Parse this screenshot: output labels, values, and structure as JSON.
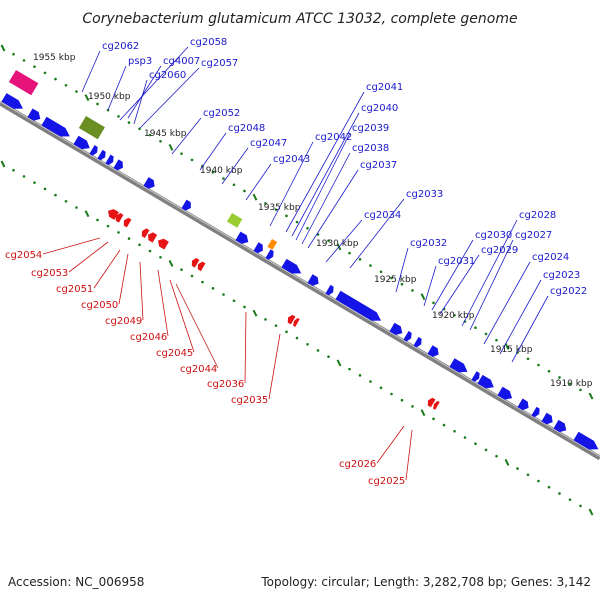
{
  "title": "Corynebacterium glutamicum ATCC 13032, complete genome",
  "footer": {
    "accession": "Accession: NC_006958",
    "summary": "Topology: circular; Length: 3,282,708 bp; Genes: 3,142"
  },
  "colors": {
    "forward_gene": "#1414e6",
    "reverse_gene": "#e61414",
    "backbone": "#808080",
    "ticks": "#1a7a1a",
    "label_forward": "#1a1acc",
    "label_reverse": "#cc1111",
    "feature_pink": "#e6147a",
    "feature_olive": "#6b8e23",
    "feature_lime": "#9acd32",
    "feature_orange": "#ff8c00"
  },
  "kbp_labels": [
    "1955 kbp",
    "1950 kbp",
    "1945 kbp",
    "1940 kbp",
    "1935 kbp",
    "1930 kbp",
    "1925 kbp",
    "1920 kbp",
    "1915 kbp",
    "1910 kbp"
  ],
  "forward_labels": [
    "cg2062",
    "psp3",
    "cg4007",
    "cg2058",
    "cg2060",
    "cg2057",
    "cg2052",
    "cg2048",
    "cg2047",
    "cg2043",
    "cg2042",
    "cg2041",
    "cg2040",
    "cg2039",
    "cg2038",
    "cg2037",
    "cg2034",
    "cg2033",
    "cg2032",
    "cg2031",
    "cg2030",
    "cg2029",
    "cg2028",
    "cg2027",
    "cg2024",
    "cg2023",
    "cg2022"
  ],
  "reverse_labels": [
    "cg2054",
    "cg2053",
    "cg2051",
    "cg2050",
    "cg2049",
    "cg2046",
    "cg2045",
    "cg2044",
    "cg2036",
    "cg2035",
    "cg2026",
    "cg2025"
  ]
}
